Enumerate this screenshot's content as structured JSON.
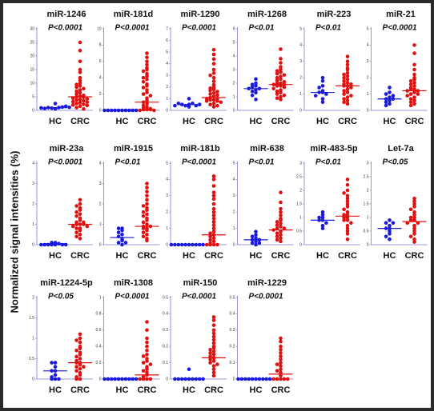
{
  "y_label": "Normalized signal intensities  (%)",
  "chart_data": [
    {
      "type": "dot",
      "title": "miR-1246",
      "annotation": "P<0.0001",
      "ylim": [
        0,
        30
      ],
      "yticks": [
        0,
        5,
        10,
        15,
        20,
        25,
        30
      ],
      "series": [
        {
          "name": "HC",
          "color": "#1a1adc",
          "median": 1,
          "values": [
            0.5,
            0.8,
            1,
            1,
            1.2,
            0.7,
            1.5,
            0.9,
            1.1,
            2.5
          ]
        },
        {
          "name": "CRC",
          "color": "#e01010",
          "median": 5,
          "values": [
            25,
            22,
            18,
            15,
            14,
            12,
            11,
            10,
            9.5,
            9,
            8.5,
            8,
            7.5,
            7,
            6.5,
            6,
            5.5,
            5.2,
            5,
            4.8,
            4.5,
            4.2,
            4,
            3.8,
            3.5,
            3.2,
            3,
            2.8,
            2.5,
            2.2,
            2,
            1.8,
            1.5,
            1,
            0.5
          ]
        }
      ]
    },
    {
      "type": "dot",
      "title": "miR-181d",
      "annotation": "P<0.0001",
      "ylim": [
        0,
        10
      ],
      "yticks": [
        0,
        2,
        4,
        6,
        8,
        10
      ],
      "series": [
        {
          "name": "HC",
          "color": "#1a1adc",
          "median": 0.05,
          "values": [
            0,
            0,
            0,
            0,
            0,
            0,
            0,
            0,
            0,
            0
          ]
        },
        {
          "name": "CRC",
          "color": "#e01010",
          "median": 1,
          "values": [
            7,
            6.5,
            6,
            5.6,
            5.2,
            5,
            4.8,
            4.5,
            4.2,
            4,
            3.8,
            3.5,
            3.2,
            3,
            2.8,
            2.5,
            2.2,
            2,
            1.8,
            1.5,
            1.2,
            1,
            0.8,
            0.6,
            0.4,
            0.3,
            0.2,
            0.1,
            0.1,
            0.1,
            0,
            0
          ]
        }
      ]
    },
    {
      "type": "dot",
      "title": "miR-1290",
      "annotation": "P<0.0001",
      "ylim": [
        0,
        7
      ],
      "yticks": [
        0,
        1,
        2,
        3,
        4,
        5,
        6,
        7
      ],
      "series": [
        {
          "name": "HC",
          "color": "#1a1adc",
          "median": 0.5,
          "values": [
            0.5,
            0.4,
            0.6,
            0.3,
            0.5,
            0.4,
            0.6,
            0.5,
            1,
            0.4
          ]
        },
        {
          "name": "CRC",
          "color": "#e01010",
          "median": 1.1,
          "values": [
            5.2,
            4.8,
            4.4,
            4,
            3.5,
            3.2,
            3,
            2.8,
            2.5,
            2.2,
            2,
            1.9,
            1.8,
            1.7,
            1.6,
            1.5,
            1.4,
            1.3,
            1.2,
            1.1,
            1,
            1,
            0.9,
            0.9,
            0.8,
            0.8,
            0.7,
            0.6,
            0.5,
            0.4,
            0.3
          ]
        }
      ]
    },
    {
      "type": "dot",
      "title": "miR-1268",
      "annotation": "P<0.01",
      "ylim": [
        0,
        6
      ],
      "yticks": [
        0,
        1,
        2,
        3,
        4,
        5,
        6
      ],
      "series": [
        {
          "name": "HC",
          "color": "#1a1adc",
          "median": 1.6,
          "values": [
            2.3,
            2,
            1.9,
            1.8,
            1.7,
            1.6,
            1.6,
            1.5,
            1.4,
            1.3,
            1.1,
            0.8
          ]
        },
        {
          "name": "CRC",
          "color": "#e01010",
          "median": 1.9,
          "values": [
            4.5,
            3.8,
            3.5,
            3.2,
            3,
            2.9,
            2.8,
            2.7,
            2.6,
            2.5,
            2.4,
            2.3,
            2.2,
            2.1,
            2,
            2,
            1.9,
            1.9,
            1.8,
            1.8,
            1.7,
            1.6,
            1.5,
            1.4,
            1.3,
            1.2,
            1.1,
            1,
            0.9,
            0.8
          ]
        }
      ]
    },
    {
      "type": "dot",
      "title": "miR-223",
      "annotation": "P<0.01",
      "ylim": [
        0,
        5
      ],
      "yticks": [
        0,
        1,
        2,
        3,
        4,
        5
      ],
      "series": [
        {
          "name": "HC",
          "color": "#1a1adc",
          "median": 1.1,
          "values": [
            2,
            1.8,
            1.5,
            1.4,
            1.2,
            1.1,
            1.1,
            1,
            0.9,
            0.7,
            0.5
          ]
        },
        {
          "name": "CRC",
          "color": "#e01010",
          "median": 1.5,
          "values": [
            3.3,
            3,
            2.8,
            2.6,
            2.5,
            2.3,
            2.2,
            2.1,
            2,
            1.9,
            1.8,
            1.7,
            1.6,
            1.6,
            1.5,
            1.5,
            1.4,
            1.3,
            1.2,
            1.1,
            1,
            0.9,
            0.8,
            0.7,
            0.6,
            0.5,
            0.4
          ]
        }
      ]
    },
    {
      "type": "dot",
      "title": "miR-21",
      "annotation": "P<0.0001",
      "ylim": [
        0,
        5
      ],
      "yticks": [
        0,
        1,
        2,
        3,
        4,
        5
      ],
      "series": [
        {
          "name": "HC",
          "color": "#1a1adc",
          "median": 0.7,
          "values": [
            1.4,
            1.1,
            1,
            0.9,
            0.8,
            0.7,
            0.7,
            0.6,
            0.5,
            0.4,
            0.3
          ]
        },
        {
          "name": "CRC",
          "color": "#e01010",
          "median": 1.2,
          "values": [
            4,
            3.5,
            2.8,
            2.5,
            2.2,
            2,
            1.9,
            1.8,
            1.7,
            1.6,
            1.5,
            1.4,
            1.3,
            1.3,
            1.2,
            1.2,
            1.1,
            1,
            1,
            0.9,
            0.8,
            0.7,
            0.6,
            0.5,
            0.4,
            0.3
          ]
        }
      ]
    },
    {
      "type": "dot",
      "title": "miR-23a",
      "annotation": "P<0.0001",
      "ylim": [
        0,
        4
      ],
      "yticks": [
        0,
        1,
        2,
        3,
        4
      ],
      "series": [
        {
          "name": "HC",
          "color": "#1a1adc",
          "median": 0.05,
          "values": [
            0.1,
            0,
            0,
            0.05,
            0,
            0,
            0,
            0,
            0.1,
            0
          ]
        },
        {
          "name": "CRC",
          "color": "#e01010",
          "median": 1,
          "values": [
            2.2,
            2,
            1.9,
            1.8,
            1.7,
            1.6,
            1.5,
            1.4,
            1.3,
            1.2,
            1.1,
            1.1,
            1,
            1,
            1,
            0.9,
            0.9,
            0.8,
            0.8,
            0.7,
            0.6,
            0.5,
            0.4,
            0.3
          ]
        }
      ]
    },
    {
      "type": "dot",
      "title": "miR-1915",
      "annotation": "P<0.01",
      "ylim": [
        0,
        4
      ],
      "yticks": [
        0,
        1,
        2,
        3,
        4
      ],
      "series": [
        {
          "name": "HC",
          "color": "#1a1adc",
          "median": 0.35,
          "values": [
            0.8,
            0.8,
            0.7,
            0.6,
            0.5,
            0.4,
            0.3,
            0.2,
            0.1,
            0.1,
            0
          ]
        },
        {
          "name": "CRC",
          "color": "#e01010",
          "median": 0.9,
          "values": [
            3,
            2.8,
            2.6,
            2.4,
            2.2,
            2,
            1.9,
            1.8,
            1.7,
            1.6,
            1.5,
            1.4,
            1.3,
            1.2,
            1.1,
            1,
            0.9,
            0.9,
            0.8,
            0.8,
            0.7,
            0.6,
            0.5,
            0.4,
            0.3,
            0.2
          ]
        }
      ]
    },
    {
      "type": "dot",
      "title": "miR-181b",
      "annotation": "P<0.0001",
      "ylim": [
        0,
        5
      ],
      "yticks": [
        0,
        1,
        2,
        3,
        4,
        5
      ],
      "series": [
        {
          "name": "HC",
          "color": "#1a1adc",
          "median": 0.02,
          "values": [
            0,
            0,
            0,
            0,
            0,
            0,
            0,
            0,
            0,
            0
          ]
        },
        {
          "name": "CRC",
          "color": "#e01010",
          "median": 0.6,
          "values": [
            4.2,
            4,
            3.6,
            3.2,
            3,
            2.8,
            2.5,
            2.2,
            2,
            1.8,
            1.6,
            1.4,
            1.2,
            1,
            0.8,
            0.7,
            0.6,
            0.5,
            0.4,
            0.3,
            0.2,
            0.1,
            0,
            0,
            0,
            0
          ]
        }
      ]
    },
    {
      "type": "dot",
      "title": "miR-638",
      "annotation": "P<0.01",
      "ylim": [
        0,
        5
      ],
      "yticks": [
        0,
        1,
        2,
        3,
        4,
        5
      ],
      "series": [
        {
          "name": "HC",
          "color": "#1a1adc",
          "median": 0.3,
          "values": [
            0.8,
            0.6,
            0.5,
            0.4,
            0.3,
            0.3,
            0.2,
            0.1,
            0.1,
            0
          ]
        },
        {
          "name": "CRC",
          "color": "#e01010",
          "median": 0.9,
          "values": [
            3.2,
            2.6,
            2.2,
            2,
            1.8,
            1.6,
            1.5,
            1.4,
            1.3,
            1.2,
            1.1,
            1,
            1,
            0.9,
            0.8,
            0.7,
            0.6,
            0.5,
            0.4,
            0.3,
            0.2
          ]
        }
      ]
    },
    {
      "type": "dot",
      "title": "miR-483-5p",
      "annotation": "P<0.01",
      "ylim": [
        0,
        3
      ],
      "yticks": [
        0,
        0.5,
        1,
        1.5,
        2,
        2.5,
        3
      ],
      "series": [
        {
          "name": "HC",
          "color": "#1a1adc",
          "median": 0.9,
          "values": [
            1.2,
            1.1,
            1,
            1,
            0.9,
            0.9,
            0.8,
            0.7,
            0.6
          ]
        },
        {
          "name": "CRC",
          "color": "#e01010",
          "median": 1.05,
          "values": [
            2.4,
            2.2,
            2,
            1.9,
            1.8,
            1.7,
            1.6,
            1.5,
            1.4,
            1.3,
            1.2,
            1.1,
            1.1,
            1,
            1,
            0.9,
            0.9,
            0.8,
            0.7,
            0.6,
            0.5,
            0.4,
            0.2
          ]
        }
      ]
    },
    {
      "type": "dot",
      "title": "Let-7a",
      "annotation": "P<0.05",
      "ylim": [
        0,
        3
      ],
      "yticks": [
        0,
        0.5,
        1,
        1.5,
        2,
        2.5,
        3
      ],
      "series": [
        {
          "name": "HC",
          "color": "#1a1adc",
          "median": 0.6,
          "values": [
            0.9,
            0.8,
            0.8,
            0.7,
            0.6,
            0.6,
            0.5,
            0.4,
            0.3,
            0.2
          ]
        },
        {
          "name": "CRC",
          "color": "#e01010",
          "median": 0.85,
          "values": [
            1.7,
            1.6,
            1.5,
            1.4,
            1.3,
            1.2,
            1.1,
            1,
            1,
            0.9,
            0.9,
            0.8,
            0.8,
            0.7,
            0.6,
            0.5,
            0.4,
            0.3,
            0.2,
            0.1
          ]
        }
      ]
    },
    {
      "type": "dot",
      "title": "miR-1224-5p",
      "annotation": "P<0.05",
      "ylim": [
        0,
        2
      ],
      "yticks": [
        0,
        0.5,
        1,
        1.5,
        2
      ],
      "series": [
        {
          "name": "HC",
          "color": "#1a1adc",
          "median": 0.2,
          "values": [
            0.4,
            0.4,
            0.3,
            0.2,
            0.2,
            0.1,
            0.05,
            0,
            0,
            0
          ]
        },
        {
          "name": "CRC",
          "color": "#e01010",
          "median": 0.4,
          "values": [
            1.1,
            1,
            0.95,
            0.9,
            0.8,
            0.75,
            0.7,
            0.65,
            0.6,
            0.55,
            0.5,
            0.45,
            0.4,
            0.4,
            0.35,
            0.3,
            0.3,
            0.25,
            0.2,
            0.15,
            0.1,
            0.05,
            0,
            0
          ]
        }
      ]
    },
    {
      "type": "dot",
      "title": "miR-1308",
      "annotation": "P<0.0001",
      "ylim": [
        0,
        1
      ],
      "yticks": [
        0,
        0.2,
        0.4,
        0.6,
        0.8,
        1
      ],
      "series": [
        {
          "name": "HC",
          "color": "#1a1adc",
          "median": 0.005,
          "values": [
            0,
            0,
            0,
            0,
            0,
            0,
            0,
            0,
            0,
            0
          ]
        },
        {
          "name": "CRC",
          "color": "#e01010",
          "median": 0.05,
          "values": [
            0.7,
            0.6,
            0.5,
            0.45,
            0.4,
            0.35,
            0.3,
            0.28,
            0.25,
            0.22,
            0.2,
            0.18,
            0.15,
            0.12,
            0.1,
            0.08,
            0.05,
            0.03,
            0,
            0,
            0,
            0
          ]
        }
      ]
    },
    {
      "type": "dot",
      "title": "miR-150",
      "annotation": "P<0.0001",
      "ylim": [
        0,
        0.5
      ],
      "yticks": [
        0,
        0.1,
        0.2,
        0.3,
        0.4,
        0.5
      ],
      "series": [
        {
          "name": "HC",
          "color": "#1a1adc",
          "median": 0.002,
          "values": [
            0.06,
            0,
            0,
            0,
            0,
            0,
            0,
            0,
            0,
            0
          ]
        },
        {
          "name": "CRC",
          "color": "#e01010",
          "median": 0.13,
          "values": [
            0.38,
            0.36,
            0.33,
            0.3,
            0.28,
            0.26,
            0.24,
            0.22,
            0.2,
            0.19,
            0.18,
            0.17,
            0.16,
            0.15,
            0.14,
            0.13,
            0.12,
            0.11,
            0.1,
            0.09,
            0.08,
            0.06,
            0.04,
            0.02
          ]
        }
      ]
    },
    {
      "type": "dot",
      "title": "miR-1229",
      "annotation": "P<0.0001",
      "ylim": [
        0,
        0.5
      ],
      "yticks": [
        0,
        0.1,
        0.2,
        0.3,
        0.4,
        0.5
      ],
      "series": [
        {
          "name": "HC",
          "color": "#1a1adc",
          "median": 0.002,
          "values": [
            0,
            0,
            0,
            0,
            0,
            0,
            0,
            0,
            0,
            0
          ]
        },
        {
          "name": "CRC",
          "color": "#e01010",
          "median": 0.03,
          "values": [
            0.25,
            0.23,
            0.2,
            0.18,
            0.16,
            0.14,
            0.12,
            0.1,
            0.09,
            0.08,
            0.06,
            0.05,
            0.04,
            0.02,
            0,
            0,
            0,
            0,
            0
          ]
        }
      ]
    }
  ]
}
